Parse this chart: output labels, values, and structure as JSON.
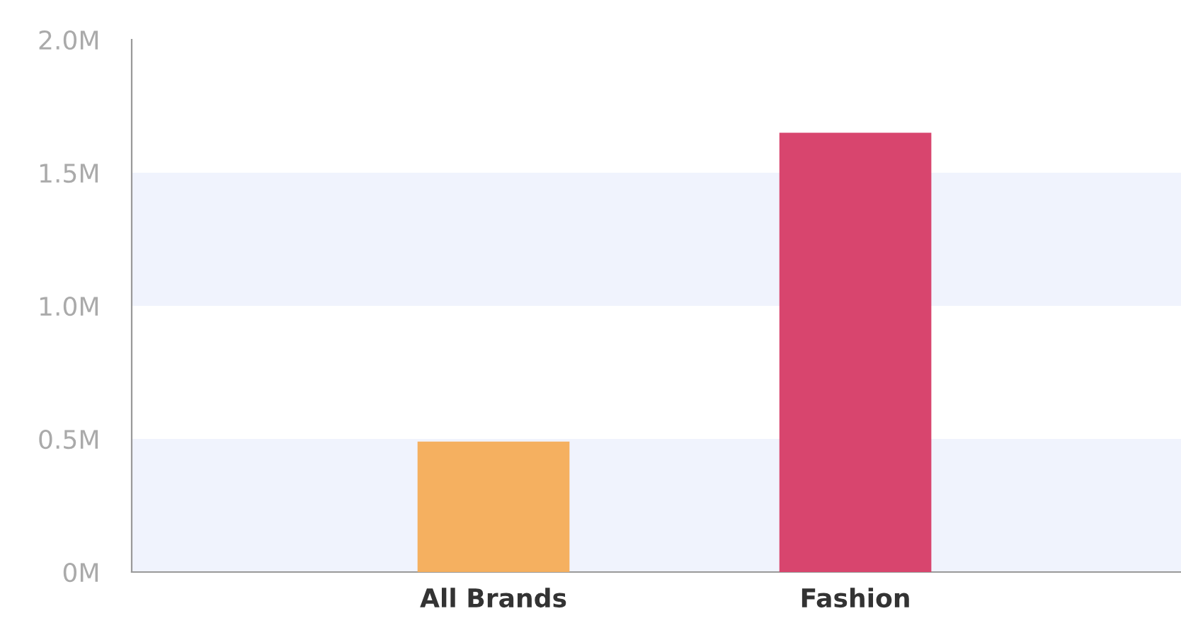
{
  "chart_data": {
    "type": "bar",
    "categories": [
      "All Brands",
      "Fashion"
    ],
    "values": [
      0.49,
      1.65
    ],
    "colors": [
      "#f5b060",
      "#d8456e"
    ],
    "ylim": [
      0,
      2.0
    ],
    "yticks": [
      {
        "value": 0,
        "label": "0M"
      },
      {
        "value": 0.5,
        "label": "0.5M"
      },
      {
        "value": 1.0,
        "label": "1.0M"
      },
      {
        "value": 1.5,
        "label": "1.5M"
      },
      {
        "value": 2.0,
        "label": "2.0M"
      }
    ],
    "bands": [
      {
        "axis": "y",
        "from": 0,
        "to": 0.5,
        "color": "#f0f3fd"
      },
      {
        "axis": "y",
        "from": 1.0,
        "to": 1.5,
        "color": "#f0f3fd"
      }
    ],
    "grid": false
  }
}
